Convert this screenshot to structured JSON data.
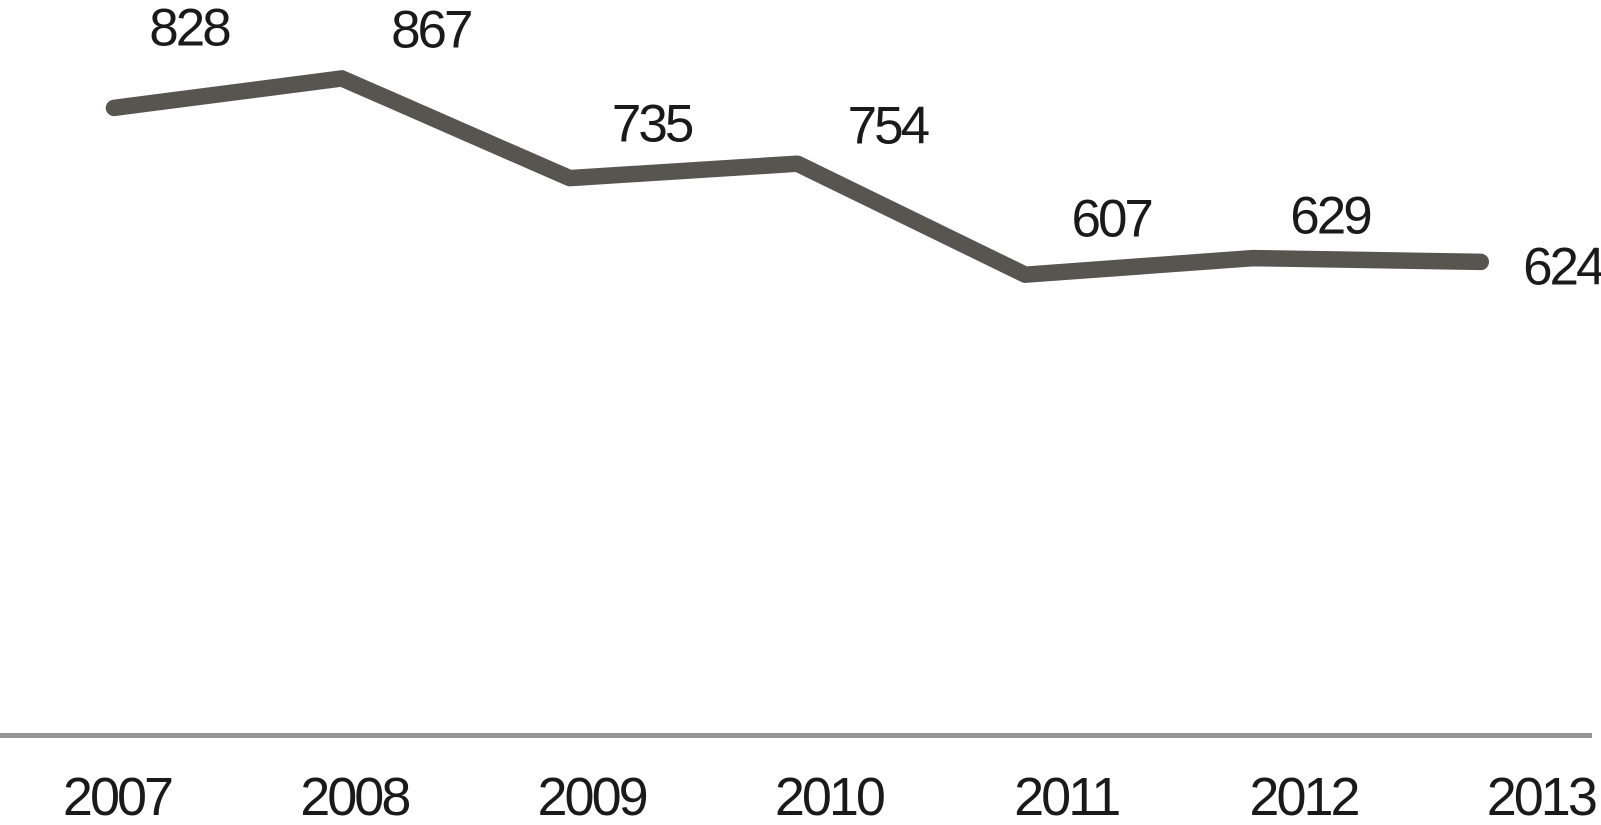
{
  "chart_data": {
    "type": "line",
    "title": "",
    "xlabel": "",
    "ylabel": "",
    "categories": [
      "2007",
      "2008",
      "2009",
      "2010",
      "2011",
      "2012",
      "2013"
    ],
    "series": [
      {
        "name": "",
        "values": [
          828,
          867,
          735,
          754,
          607,
          629,
          624
        ]
      }
    ],
    "data_labels": [
      "828",
      "867",
      "735",
      "754",
      "607",
      "629",
      "624"
    ],
    "ylim": [
      0,
      970
    ],
    "grid": false,
    "legend": false,
    "x_axis_visible": true,
    "y_axis_visible": false,
    "line_color": "#585551",
    "axis_color": "#969696",
    "label_color": "#1a1a1a"
  }
}
